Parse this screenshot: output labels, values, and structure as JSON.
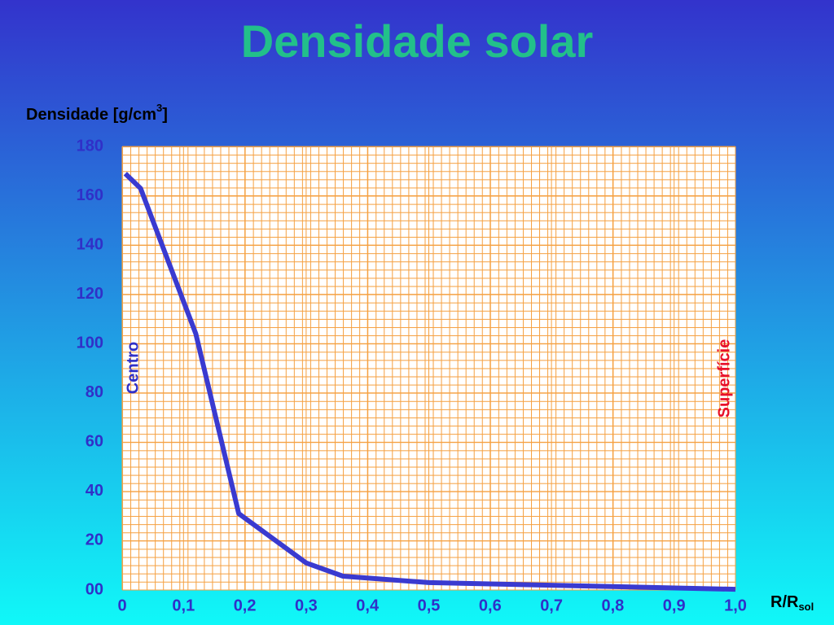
{
  "chart_data": {
    "type": "line",
    "title": "Densidade solar",
    "y_label": {
      "text": "Densidade [g/cm",
      "superscript": "3",
      "suffix": "]"
    },
    "x_label": {
      "text": "R/R",
      "subscript": "sol"
    },
    "annotations": {
      "left": "Centro",
      "right": "Superfície"
    },
    "x": [
      0.005,
      0.03,
      0.12,
      0.19,
      0.3,
      0.36,
      0.5,
      1.0
    ],
    "series": [
      {
        "name": "Densidade",
        "color": "#3a3ad0",
        "values": [
          169,
          163,
          104,
          31,
          11,
          5.6,
          3,
          0.3
        ]
      }
    ],
    "xlim": [
      0,
      1
    ],
    "xticks": [
      0,
      {
        "value": 0.1,
        "label": "0,1"
      },
      {
        "value": 0.2,
        "label": "0,2"
      },
      {
        "value": 0.3,
        "label": "0,3"
      },
      {
        "value": 0.4,
        "label": "0,4"
      },
      {
        "value": 0.5,
        "label": "0,5"
      },
      {
        "value": 0.6,
        "label": "0,6"
      },
      {
        "value": 0.7,
        "label": "0,7"
      },
      {
        "value": 0.8,
        "label": "0,8"
      },
      {
        "value": 0.9,
        "label": "0,9"
      },
      {
        "value": 1,
        "label": "1,0"
      }
    ],
    "ylim": [
      0,
      180
    ],
    "yticks": [
      {
        "value": 0,
        "label": "00"
      },
      20,
      40,
      60,
      80,
      100,
      120,
      140,
      160,
      180
    ],
    "grid": true
  }
}
